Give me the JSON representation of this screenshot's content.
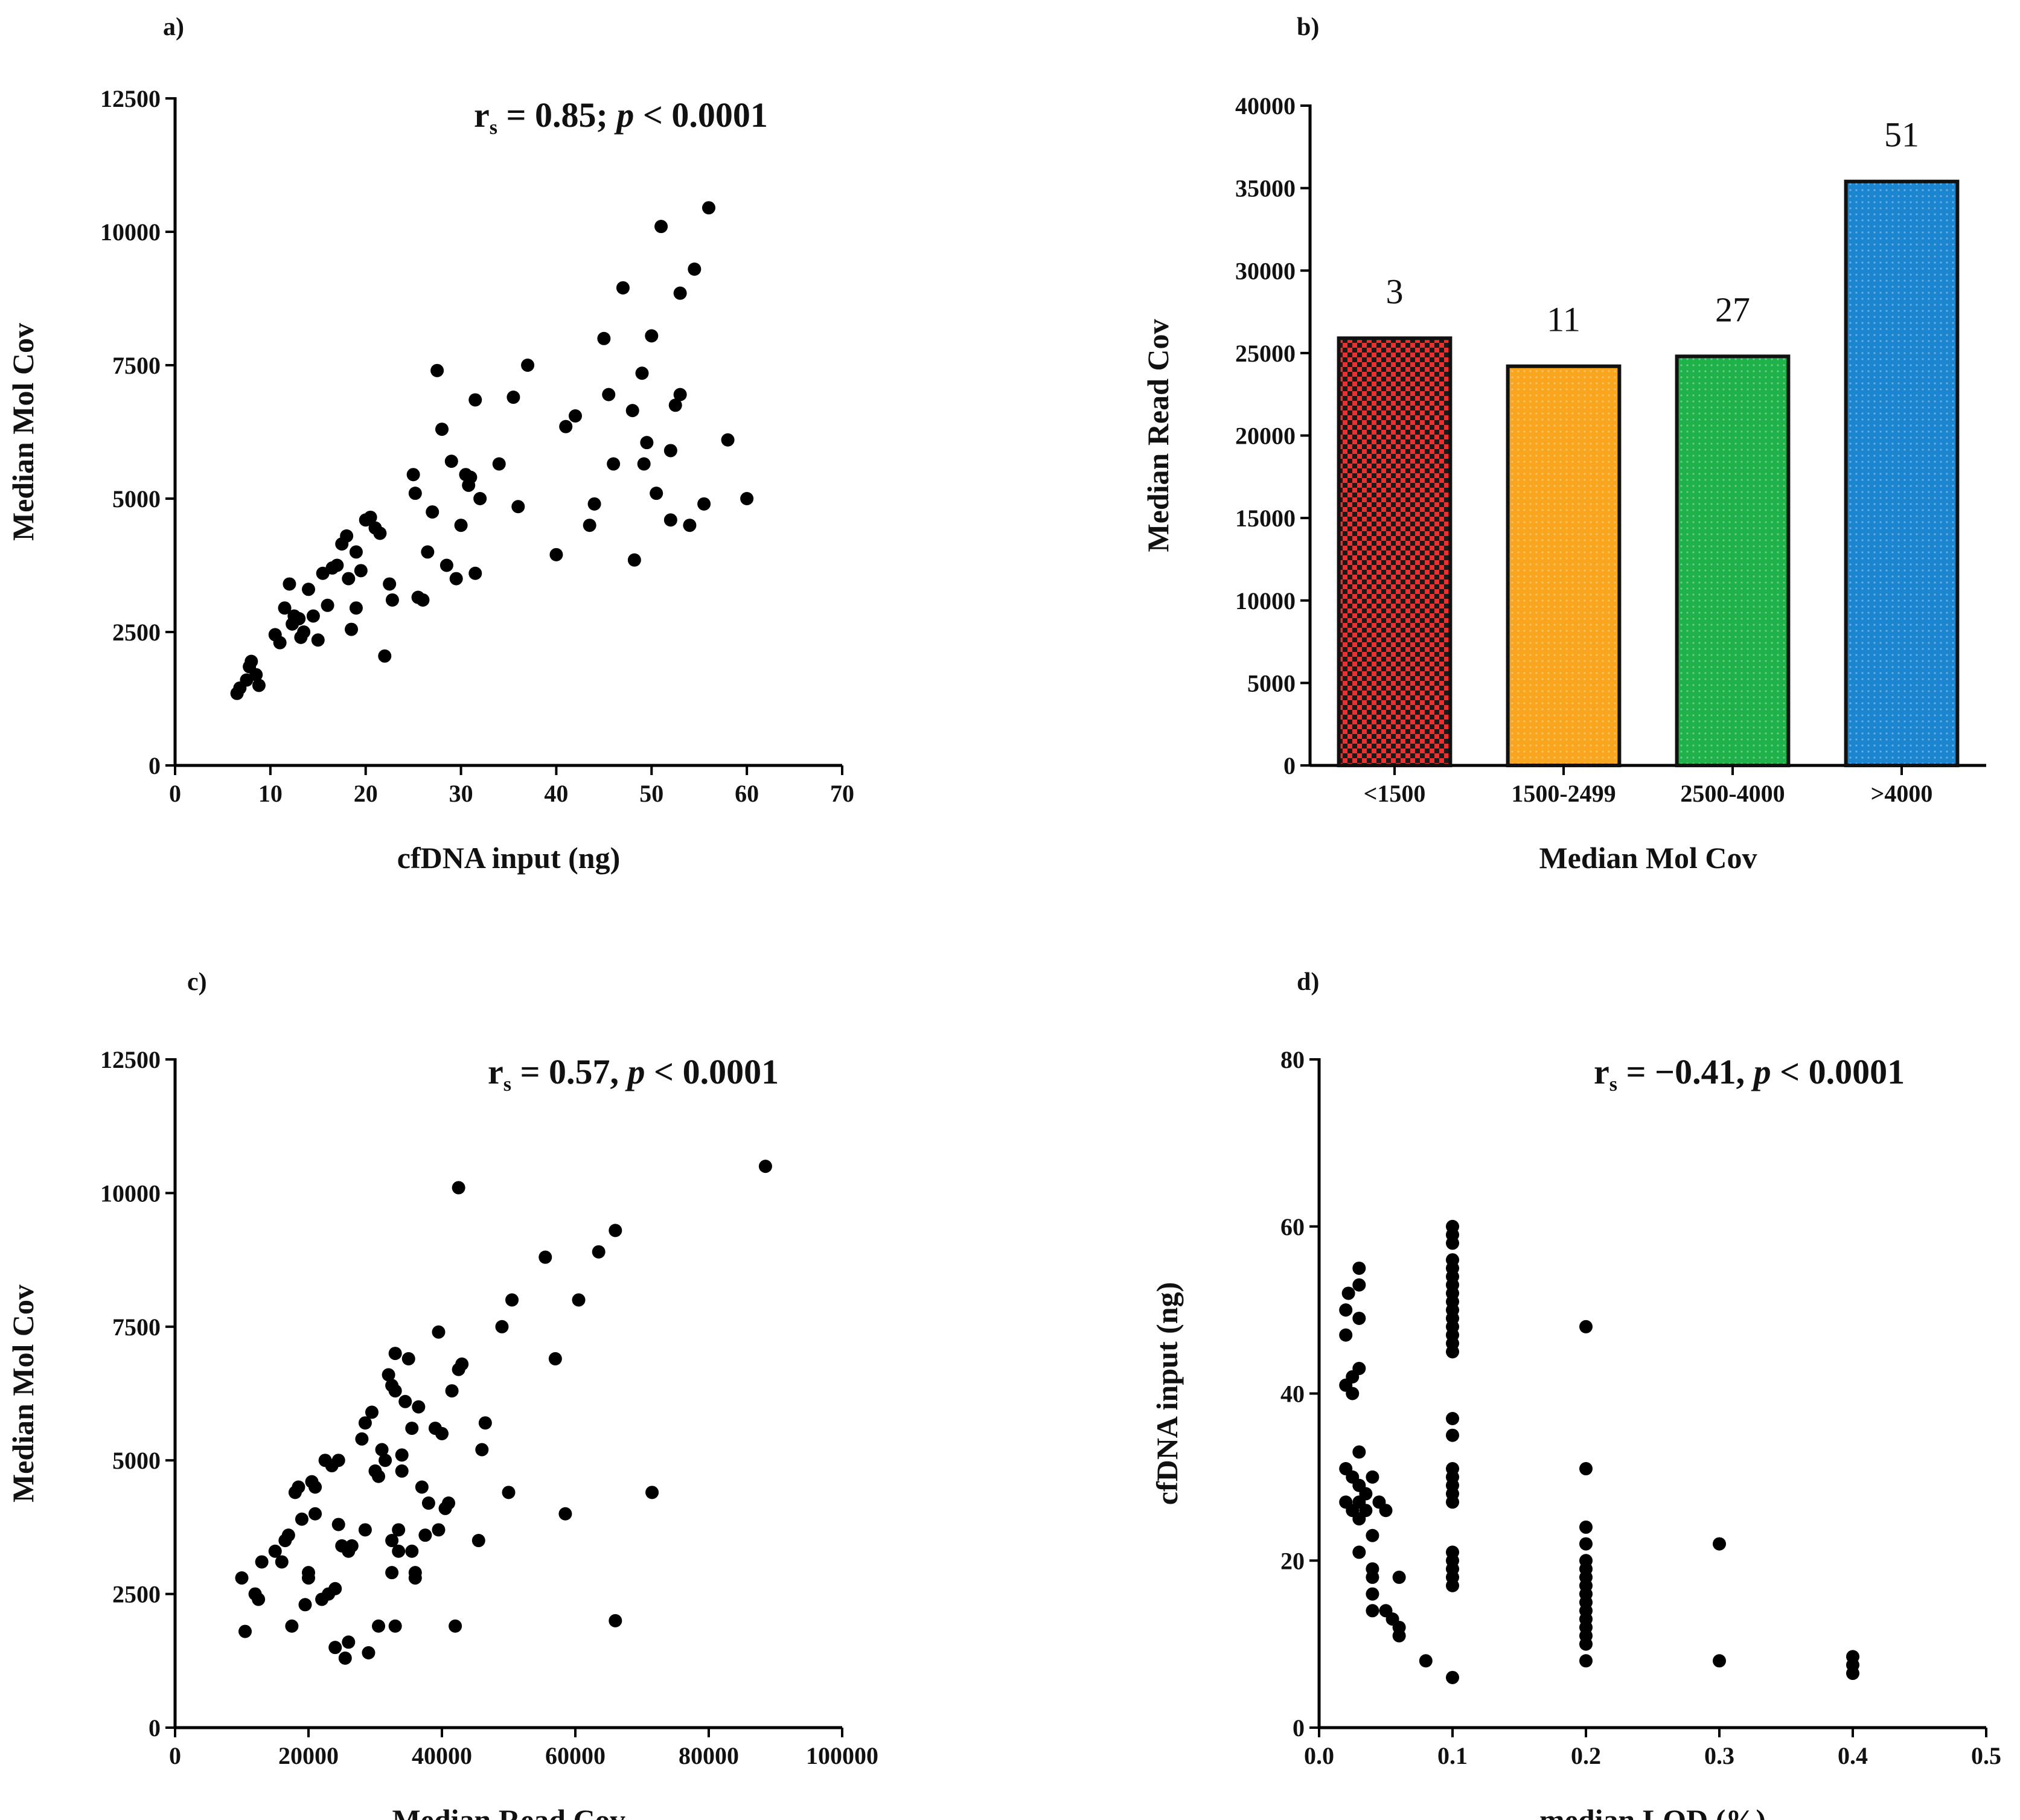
{
  "chart_data": [
    {
      "panel": "a)",
      "type": "scatter",
      "xlabel": "cfDNA input (ng)",
      "ylabel": "Median Mol Cov",
      "xlim": [
        0,
        70
      ],
      "ylim": [
        0,
        12500
      ],
      "xticks": [
        0,
        10,
        20,
        30,
        40,
        50,
        60,
        70
      ],
      "yticks": [
        0,
        2500,
        5000,
        7500,
        10000,
        12500
      ],
      "annotation": {
        "pre": "r",
        "sub": "s",
        "mid": " = 0.85; ",
        "p": "p",
        "post": " < 0.0001"
      },
      "points": [
        [
          6.5,
          1350
        ],
        [
          6.8,
          1450
        ],
        [
          7.5,
          1600
        ],
        [
          7.8,
          1850
        ],
        [
          8,
          1950
        ],
        [
          8.5,
          1700
        ],
        [
          8.8,
          1500
        ],
        [
          10.5,
          2450
        ],
        [
          11,
          2300
        ],
        [
          11.5,
          2950
        ],
        [
          12,
          3400
        ],
        [
          12.3,
          2650
        ],
        [
          12.5,
          2800
        ],
        [
          13,
          2750
        ],
        [
          13.2,
          2400
        ],
        [
          13.5,
          2500
        ],
        [
          14,
          3300
        ],
        [
          14.5,
          2800
        ],
        [
          15,
          2350
        ],
        [
          15.5,
          3600
        ],
        [
          16,
          3000
        ],
        [
          16.5,
          3700
        ],
        [
          17,
          3750
        ],
        [
          17.5,
          4150
        ],
        [
          18,
          4300
        ],
        [
          18.2,
          3500
        ],
        [
          18.5,
          2550
        ],
        [
          19,
          4000
        ],
        [
          19,
          2950
        ],
        [
          19.5,
          3650
        ],
        [
          20,
          4600
        ],
        [
          20.5,
          4650
        ],
        [
          21,
          4450
        ],
        [
          21.5,
          4350
        ],
        [
          22,
          2050
        ],
        [
          22.5,
          3400
        ],
        [
          22.8,
          3100
        ],
        [
          25,
          5450
        ],
        [
          25.2,
          5100
        ],
        [
          25.5,
          3150
        ],
        [
          26,
          3100
        ],
        [
          26.5,
          4000
        ],
        [
          27,
          4750
        ],
        [
          27.5,
          7400
        ],
        [
          28,
          6300
        ],
        [
          28.5,
          3750
        ],
        [
          29,
          5700
        ],
        [
          29.5,
          3500
        ],
        [
          30,
          4500
        ],
        [
          30.5,
          5450
        ],
        [
          30.8,
          5250
        ],
        [
          31,
          5400
        ],
        [
          31.5,
          3600
        ],
        [
          31.5,
          6850
        ],
        [
          32,
          5000
        ],
        [
          34,
          5650
        ],
        [
          35.5,
          6900
        ],
        [
          36,
          4850
        ],
        [
          37,
          7500
        ],
        [
          40,
          3950
        ],
        [
          41,
          6350
        ],
        [
          42,
          6550
        ],
        [
          43.5,
          4500
        ],
        [
          44,
          4900
        ],
        [
          45,
          8000
        ],
        [
          45.5,
          6950
        ],
        [
          46,
          5650
        ],
        [
          47,
          8950
        ],
        [
          48,
          6650
        ],
        [
          48.2,
          3850
        ],
        [
          49,
          7350
        ],
        [
          49.2,
          5650
        ],
        [
          49.5,
          6050
        ],
        [
          50,
          8050
        ],
        [
          50.5,
          5100
        ],
        [
          51,
          10100
        ],
        [
          52,
          5900
        ],
        [
          52,
          4600
        ],
        [
          52.5,
          6750
        ],
        [
          53,
          6950
        ],
        [
          53,
          8850
        ],
        [
          54,
          4500
        ],
        [
          54.5,
          9300
        ],
        [
          55.5,
          4900
        ],
        [
          56,
          10450
        ],
        [
          58,
          6100
        ],
        [
          60,
          5000
        ]
      ]
    },
    {
      "panel": "b)",
      "type": "bar",
      "xlabel": "Median Mol Cov",
      "ylabel": "Median Read Cov",
      "ylim": [
        0,
        40000
      ],
      "yticks": [
        0,
        5000,
        10000,
        15000,
        20000,
        25000,
        30000,
        35000,
        40000
      ],
      "categories": [
        "<1500",
        "1500-2499",
        "2500-4000",
        ">4000"
      ],
      "values": [
        25900,
        24200,
        24800,
        35400
      ],
      "counts": [
        "3",
        "11",
        "27",
        "51"
      ],
      "colors": [
        "#e8322f",
        "#f9a51e",
        "#1fb24a",
        "#1b86cf"
      ]
    },
    {
      "panel": "c)",
      "type": "scatter",
      "xlabel": "Median Read Cov",
      "ylabel": "Median Mol Cov",
      "xlim": [
        0,
        100000
      ],
      "ylim": [
        0,
        12500
      ],
      "xticks": [
        0,
        20000,
        40000,
        60000,
        80000,
        100000
      ],
      "yticks": [
        0,
        2500,
        5000,
        7500,
        10000,
        12500
      ],
      "annotation": {
        "pre": "r",
        "sub": "s",
        "mid": " = 0.57, ",
        "p": "p",
        "post": " < 0.0001"
      },
      "points": [
        [
          10000,
          2800
        ],
        [
          10500,
          1800
        ],
        [
          12000,
          2500
        ],
        [
          12500,
          2400
        ],
        [
          13000,
          3100
        ],
        [
          15000,
          3300
        ],
        [
          16000,
          3100
        ],
        [
          16500,
          3500
        ],
        [
          17000,
          3600
        ],
        [
          17500,
          1900
        ],
        [
          18000,
          4400
        ],
        [
          18500,
          4500
        ],
        [
          19000,
          3900
        ],
        [
          19500,
          2300
        ],
        [
          20000,
          2900
        ],
        [
          20000,
          2800
        ],
        [
          20500,
          4600
        ],
        [
          21000,
          4500
        ],
        [
          21000,
          4000
        ],
        [
          22000,
          2400
        ],
        [
          22500,
          5000
        ],
        [
          23000,
          2500
        ],
        [
          23500,
          4900
        ],
        [
          24000,
          2600
        ],
        [
          24000,
          1500
        ],
        [
          24500,
          5000
        ],
        [
          24500,
          3800
        ],
        [
          25000,
          3400
        ],
        [
          25500,
          1300
        ],
        [
          26000,
          3300
        ],
        [
          26000,
          1600
        ],
        [
          26500,
          3400
        ],
        [
          28000,
          5400
        ],
        [
          28500,
          5700
        ],
        [
          28500,
          3700
        ],
        [
          29000,
          1400
        ],
        [
          29500,
          5900
        ],
        [
          30000,
          4800
        ],
        [
          30500,
          4700
        ],
        [
          30500,
          1900
        ],
        [
          31000,
          5200
        ],
        [
          31500,
          5000
        ],
        [
          32000,
          6600
        ],
        [
          32500,
          6400
        ],
        [
          32500,
          3500
        ],
        [
          32500,
          2900
        ],
        [
          33000,
          7000
        ],
        [
          33000,
          6300
        ],
        [
          33000,
          1900
        ],
        [
          33500,
          3700
        ],
        [
          33500,
          3300
        ],
        [
          34000,
          5100
        ],
        [
          34000,
          4800
        ],
        [
          34500,
          6100
        ],
        [
          35000,
          6900
        ],
        [
          35500,
          5600
        ],
        [
          35500,
          3300
        ],
        [
          36000,
          2900
        ],
        [
          36000,
          2800
        ],
        [
          36500,
          6000
        ],
        [
          37000,
          4500
        ],
        [
          37500,
          3600
        ],
        [
          38000,
          4200
        ],
        [
          39000,
          5600
        ],
        [
          39500,
          7400
        ],
        [
          39500,
          3700
        ],
        [
          40000,
          5500
        ],
        [
          40500,
          4100
        ],
        [
          41000,
          4200
        ],
        [
          41500,
          6300
        ],
        [
          42000,
          1900
        ],
        [
          42500,
          6700
        ],
        [
          42500,
          10100
        ],
        [
          43000,
          6800
        ],
        [
          45500,
          3500
        ],
        [
          46000,
          5200
        ],
        [
          46500,
          5700
        ],
        [
          49000,
          7500
        ],
        [
          50000,
          4400
        ],
        [
          50500,
          8000
        ],
        [
          55500,
          8800
        ],
        [
          57000,
          6900
        ],
        [
          58500,
          4000
        ],
        [
          60500,
          8000
        ],
        [
          63500,
          8900
        ],
        [
          66000,
          9300
        ],
        [
          66000,
          2000
        ],
        [
          71500,
          4400
        ],
        [
          88500,
          10500
        ]
      ]
    },
    {
      "panel": "d)",
      "type": "scatter",
      "xlabel": "median LOD (%)",
      "ylabel": "cfDNA input (ng)",
      "xlim": [
        0,
        0.5
      ],
      "ylim": [
        0,
        80
      ],
      "xticks": [
        "0.0",
        "0.1",
        "0.2",
        "0.3",
        "0.4",
        "0.5"
      ],
      "yticks": [
        0,
        20,
        40,
        60,
        80
      ],
      "annotation": {
        "pre": "r",
        "sub": "s",
        "mid": " = −0.41, ",
        "p": "p",
        "post": " < 0.0001"
      },
      "points": [
        [
          0.02,
          27
        ],
        [
          0.02,
          31
        ],
        [
          0.02,
          41
        ],
        [
          0.02,
          47
        ],
        [
          0.02,
          50
        ],
        [
          0.022,
          52
        ],
        [
          0.025,
          26
        ],
        [
          0.025,
          30
        ],
        [
          0.025,
          40
        ],
        [
          0.025,
          42
        ],
        [
          0.03,
          21
        ],
        [
          0.03,
          25
        ],
        [
          0.03,
          27
        ],
        [
          0.03,
          29
        ],
        [
          0.03,
          33
        ],
        [
          0.03,
          43
        ],
        [
          0.03,
          49
        ],
        [
          0.03,
          53
        ],
        [
          0.03,
          55
        ],
        [
          0.035,
          26
        ],
        [
          0.035,
          28
        ],
        [
          0.04,
          14
        ],
        [
          0.04,
          16
        ],
        [
          0.04,
          18
        ],
        [
          0.04,
          19
        ],
        [
          0.04,
          23
        ],
        [
          0.04,
          30
        ],
        [
          0.045,
          27
        ],
        [
          0.05,
          14
        ],
        [
          0.05,
          26
        ],
        [
          0.055,
          13
        ],
        [
          0.06,
          11
        ],
        [
          0.06,
          12
        ],
        [
          0.06,
          18
        ],
        [
          0.08,
          8
        ],
        [
          0.1,
          6
        ],
        [
          0.1,
          17
        ],
        [
          0.1,
          18
        ],
        [
          0.1,
          19
        ],
        [
          0.1,
          20
        ],
        [
          0.1,
          21
        ],
        [
          0.1,
          27
        ],
        [
          0.1,
          28
        ],
        [
          0.1,
          29
        ],
        [
          0.1,
          30
        ],
        [
          0.1,
          31
        ],
        [
          0.1,
          35
        ],
        [
          0.1,
          37
        ],
        [
          0.1,
          45
        ],
        [
          0.1,
          46
        ],
        [
          0.1,
          47
        ],
        [
          0.1,
          48
        ],
        [
          0.1,
          49
        ],
        [
          0.1,
          50
        ],
        [
          0.1,
          51
        ],
        [
          0.1,
          52
        ],
        [
          0.1,
          53
        ],
        [
          0.1,
          54
        ],
        [
          0.1,
          55
        ],
        [
          0.1,
          56
        ],
        [
          0.1,
          58
        ],
        [
          0.1,
          59
        ],
        [
          0.1,
          60
        ],
        [
          0.2,
          8
        ],
        [
          0.2,
          10
        ],
        [
          0.2,
          11
        ],
        [
          0.2,
          12
        ],
        [
          0.2,
          13
        ],
        [
          0.2,
          14
        ],
        [
          0.2,
          15
        ],
        [
          0.2,
          16
        ],
        [
          0.2,
          17
        ],
        [
          0.2,
          18
        ],
        [
          0.2,
          19
        ],
        [
          0.2,
          20
        ],
        [
          0.2,
          22
        ],
        [
          0.2,
          24
        ],
        [
          0.2,
          31
        ],
        [
          0.2,
          48
        ],
        [
          0.3,
          8
        ],
        [
          0.3,
          22
        ],
        [
          0.4,
          6.5
        ],
        [
          0.4,
          7.5
        ],
        [
          0.4,
          8.5
        ]
      ]
    }
  ]
}
